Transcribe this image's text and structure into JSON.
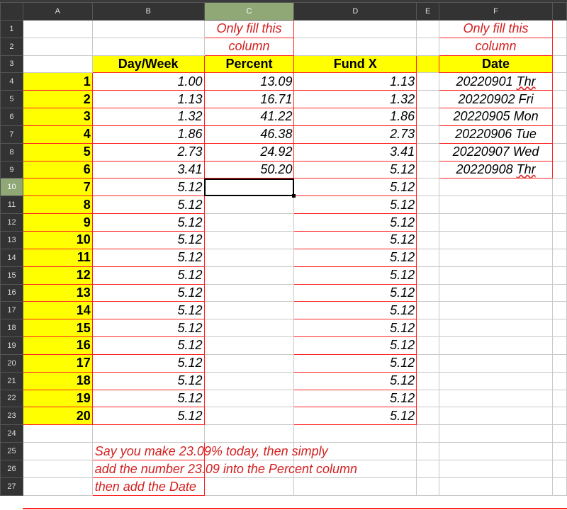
{
  "columns": [
    "A",
    "B",
    "C",
    "D",
    "E",
    "F",
    ""
  ],
  "selected_cell": "C10",
  "header_row_label": {
    "day_week": "Day/Week",
    "percent": "Percent",
    "fund": "Fund X",
    "date": "Date"
  },
  "notes": {
    "percent_hint_1": "Only fill this",
    "percent_hint_2": "column",
    "date_hint_1": "Only fill this",
    "date_hint_2": "column",
    "instructions": [
      "Say you make 23.09% today, then simply",
      "add the number 23.09 into the Percent column",
      "then add the Date"
    ]
  },
  "rows": [
    {
      "n": "1",
      "a": "",
      "b": "",
      "c": "",
      "d": "",
      "f": ""
    },
    {
      "n": "2",
      "a": "",
      "b": "",
      "c": "",
      "d": "",
      "f": ""
    },
    {
      "n": "3",
      "a": "",
      "b": "",
      "c": "",
      "d": "",
      "f": ""
    },
    {
      "n": "4",
      "a": "1",
      "b": "1.00",
      "c": "13.09",
      "d": "1.13",
      "f": "20220901 Thr"
    },
    {
      "n": "5",
      "a": "2",
      "b": "1.13",
      "c": "16.71",
      "d": "1.32",
      "f": "20220902 Fri"
    },
    {
      "n": "6",
      "a": "3",
      "b": "1.32",
      "c": "41.22",
      "d": "1.86",
      "f": "20220905 Mon"
    },
    {
      "n": "7",
      "a": "4",
      "b": "1.86",
      "c": "46.38",
      "d": "2.73",
      "f": "20220906 Tue"
    },
    {
      "n": "8",
      "a": "5",
      "b": "2.73",
      "c": "24.92",
      "d": "3.41",
      "f": "20220907 Wed"
    },
    {
      "n": "9",
      "a": "6",
      "b": "3.41",
      "c": "50.20",
      "d": "5.12",
      "f": "20220908 Thr"
    },
    {
      "n": "10",
      "a": "7",
      "b": "5.12",
      "c": "",
      "d": "5.12",
      "f": ""
    },
    {
      "n": "11",
      "a": "8",
      "b": "5.12",
      "c": "",
      "d": "5.12",
      "f": ""
    },
    {
      "n": "12",
      "a": "9",
      "b": "5.12",
      "c": "",
      "d": "5.12",
      "f": ""
    },
    {
      "n": "13",
      "a": "10",
      "b": "5.12",
      "c": "",
      "d": "5.12",
      "f": ""
    },
    {
      "n": "14",
      "a": "11",
      "b": "5.12",
      "c": "",
      "d": "5.12",
      "f": ""
    },
    {
      "n": "15",
      "a": "12",
      "b": "5.12",
      "c": "",
      "d": "5.12",
      "f": ""
    },
    {
      "n": "16",
      "a": "13",
      "b": "5.12",
      "c": "",
      "d": "5.12",
      "f": ""
    },
    {
      "n": "17",
      "a": "14",
      "b": "5.12",
      "c": "",
      "d": "5.12",
      "f": ""
    },
    {
      "n": "18",
      "a": "15",
      "b": "5.12",
      "c": "",
      "d": "5.12",
      "f": ""
    },
    {
      "n": "19",
      "a": "16",
      "b": "5.12",
      "c": "",
      "d": "5.12",
      "f": ""
    },
    {
      "n": "20",
      "a": "17",
      "b": "5.12",
      "c": "",
      "d": "5.12",
      "f": ""
    },
    {
      "n": "21",
      "a": "18",
      "b": "5.12",
      "c": "",
      "d": "5.12",
      "f": ""
    },
    {
      "n": "22",
      "a": "19",
      "b": "5.12",
      "c": "",
      "d": "5.12",
      "f": ""
    },
    {
      "n": "23",
      "a": "20",
      "b": "5.12",
      "c": "",
      "d": "5.12",
      "f": ""
    },
    {
      "n": "24",
      "a": "",
      "b": "",
      "c": "",
      "d": "",
      "f": ""
    },
    {
      "n": "25",
      "a": "",
      "b": "",
      "c": "",
      "d": "",
      "f": ""
    },
    {
      "n": "26",
      "a": "",
      "b": "",
      "c": "",
      "d": "",
      "f": ""
    },
    {
      "n": "27",
      "a": "",
      "b": "",
      "c": "",
      "d": "",
      "f": ""
    }
  ],
  "colors": {
    "header_fill": "#ffff00",
    "border_accent": "#ff2222",
    "note_text": "#d42020",
    "selected_header": "#8fa876"
  }
}
